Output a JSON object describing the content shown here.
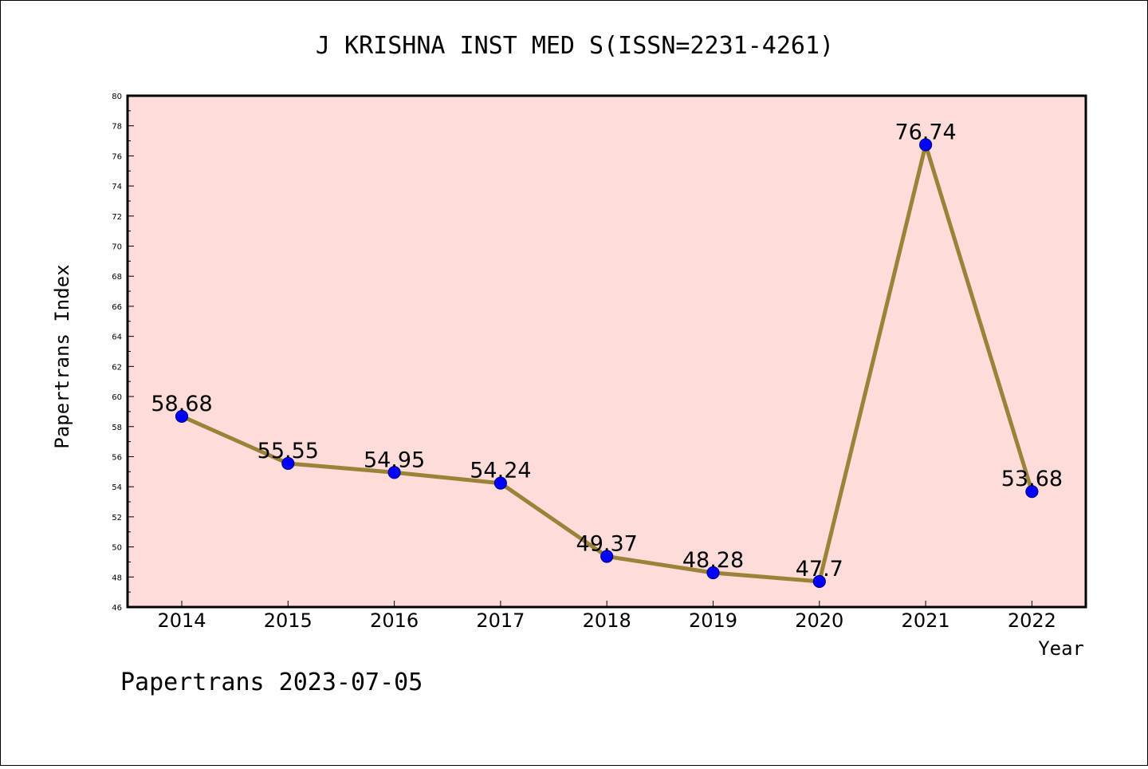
{
  "chart_data": {
    "type": "line",
    "title": "J KRISHNA INST MED S(ISSN=2231-4261)",
    "xlabel": "Year",
    "ylabel": "Papertrans Index",
    "categories": [
      "2014",
      "2015",
      "2016",
      "2017",
      "2018",
      "2019",
      "2020",
      "2021",
      "2022"
    ],
    "series": [
      {
        "name": "Papertrans Index",
        "values": [
          58.68,
          55.55,
          54.95,
          54.24,
          49.37,
          48.28,
          47.7,
          76.74,
          53.68
        ],
        "labels": [
          "58.68",
          "55.55",
          "54.95",
          "54.24",
          "49.37",
          "48.28",
          "47.7",
          "76.74",
          "53.68"
        ]
      }
    ],
    "ylim": [
      46,
      80
    ],
    "yticks": [
      "46",
      "48",
      "50",
      "52",
      "54",
      "56",
      "58",
      "60",
      "62",
      "64",
      "66",
      "68",
      "70",
      "72",
      "74",
      "76",
      "78",
      "80"
    ],
    "grid": false,
    "colors": {
      "plot_background": "#fddcda",
      "line": "#9a8238",
      "marker": "#0000ff",
      "marker_edge": "#00008b"
    }
  },
  "footer": {
    "text": "Papertrans 2023-07-05"
  }
}
